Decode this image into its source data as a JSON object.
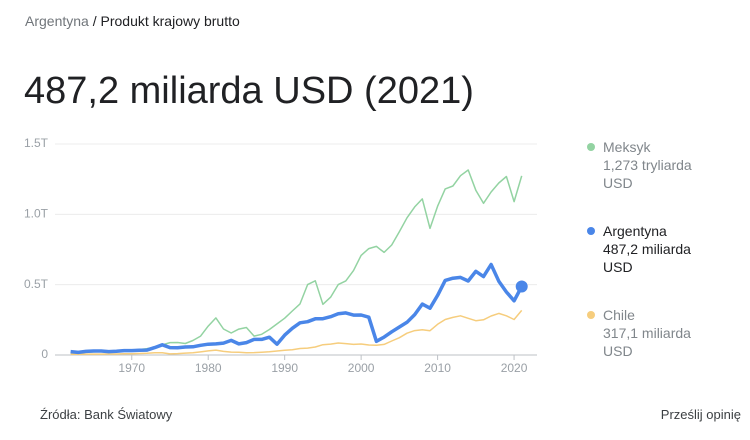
{
  "breadcrumb": [
    "Argentyna",
    "Produkt krajowy brutto"
  ],
  "headline": "487,2 miliarda USD (2021)",
  "source": "Źródła: Bank Światowy",
  "feedback": "Prześlij opinię",
  "chart_data": {
    "type": "line",
    "x": [
      1962,
      1963,
      1964,
      1965,
      1966,
      1967,
      1968,
      1969,
      1970,
      1971,
      1972,
      1973,
      1974,
      1975,
      1976,
      1977,
      1978,
      1979,
      1980,
      1981,
      1982,
      1983,
      1984,
      1985,
      1986,
      1987,
      1988,
      1989,
      1990,
      1991,
      1992,
      1993,
      1994,
      1995,
      1996,
      1997,
      1998,
      1999,
      2000,
      2001,
      2002,
      2003,
      2004,
      2005,
      2006,
      2007,
      2008,
      2009,
      2010,
      2011,
      2012,
      2013,
      2014,
      2015,
      2016,
      2017,
      2018,
      2019,
      2020,
      2021
    ],
    "xlim": [
      1958,
      2023
    ],
    "xticks": [
      1970,
      1980,
      1990,
      2000,
      2010,
      2020
    ],
    "ylim": [
      0,
      1.5
    ],
    "yticks": [
      0,
      {
        "value": 0.5,
        "label": "0.5T"
      },
      {
        "value": 1,
        "label": "1.0T"
      },
      {
        "value": 1.5,
        "label": "1.5T"
      }
    ],
    "grid": true,
    "series": [
      {
        "name": "Meksyk",
        "color": "#93d3a2",
        "latest_label": "1,273 tryliarda USD",
        "values": [
          0.0152,
          0.017,
          0.0201,
          0.0218,
          0.0243,
          0.0266,
          0.0294,
          0.0325,
          0.0355,
          0.0392,
          0.0452,
          0.0553,
          0.072,
          0.088,
          0.089,
          0.0816,
          0.1029,
          0.1345,
          0.2051,
          0.2639,
          0.1846,
          0.1562,
          0.1842,
          0.1952,
          0.1345,
          0.1475,
          0.1816,
          0.2214,
          0.2613,
          0.3131,
          0.3632,
          0.5007,
          0.5273,
          0.3601,
          0.4109,
          0.5004,
          0.5265,
          0.6002,
          0.7079,
          0.7567,
          0.7721,
          0.7293,
          0.7822,
          0.8775,
          0.9754,
          1.0527,
          1.1099,
          0.9,
          1.0578,
          1.1805,
          1.2011,
          1.2744,
          1.3154,
          1.1719,
          1.0785,
          1.1589,
          1.2224,
          1.269,
          1.0905,
          1.273
        ]
      },
      {
        "name": "Argentyna",
        "color": "#4a86e8",
        "latest_label": "487,2 miliarda USD",
        "values": [
          0.0245,
          0.0183,
          0.0256,
          0.0283,
          0.0286,
          0.0243,
          0.0264,
          0.0313,
          0.0316,
          0.0333,
          0.0347,
          0.0525,
          0.0724,
          0.0524,
          0.0512,
          0.0568,
          0.0581,
          0.0693,
          0.077,
          0.0787,
          0.0843,
          0.1039,
          0.0791,
          0.0884,
          0.1109,
          0.1111,
          0.1262,
          0.0766,
          0.1414,
          0.1897,
          0.2288,
          0.2367,
          0.2577,
          0.258,
          0.2722,
          0.293,
          0.299,
          0.2835,
          0.2842,
          0.2687,
          0.0977,
          0.1276,
          0.1647,
          0.1987,
          0.2326,
          0.2875,
          0.3616,
          0.3329,
          0.4236,
          0.5302,
          0.546,
          0.552,
          0.5263,
          0.5947,
          0.5575,
          0.6436,
          0.5248,
          0.4478,
          0.3855,
          0.4872
        ]
      },
      {
        "name": "Chile",
        "color": "#f6cd7d",
        "latest_label": "317,1 miliarda USD",
        "values": [
          0.006,
          0.0059,
          0.0062,
          0.0063,
          0.0067,
          0.007,
          0.0073,
          0.0085,
          0.0091,
          0.0109,
          0.0118,
          0.0162,
          0.0161,
          0.0076,
          0.0103,
          0.0137,
          0.0156,
          0.0218,
          0.029,
          0.0346,
          0.0253,
          0.0204,
          0.0192,
          0.0166,
          0.0174,
          0.02,
          0.0232,
          0.0281,
          0.0331,
          0.0379,
          0.0459,
          0.0492,
          0.057,
          0.0734,
          0.0778,
          0.0854,
          0.0811,
          0.0754,
          0.0779,
          0.0713,
          0.07,
          0.0756,
          0.0992,
          0.1229,
          0.1548,
          0.1736,
          0.1796,
          0.1724,
          0.2185,
          0.2523,
          0.2671,
          0.2784,
          0.2606,
          0.2439,
          0.2504,
          0.2771,
          0.2959,
          0.2786,
          0.2527,
          0.3171
        ]
      }
    ]
  }
}
